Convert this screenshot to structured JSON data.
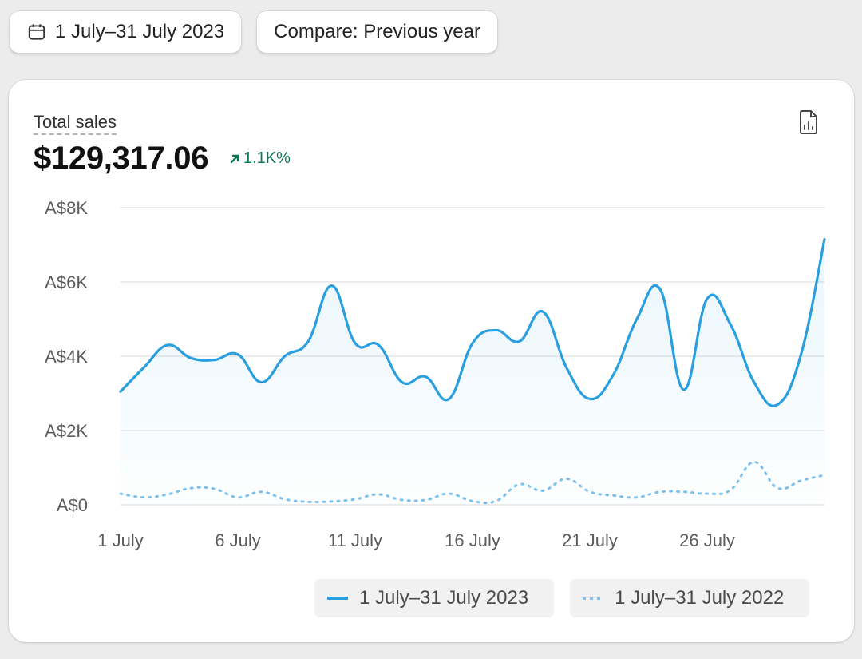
{
  "toolbar": {
    "date_range_label": "1 July–31 July 2023",
    "compare_label": "Compare: Previous year",
    "date_icon": "calendar-icon"
  },
  "metric": {
    "title": "Total sales",
    "value": "$129,317.06",
    "change": "1.1K%",
    "change_icon": "arrow-up-right-icon",
    "export_icon": "chart-report-icon"
  },
  "colors": {
    "current": "#2a9fe0",
    "previous": "#7cc0ec",
    "grid": "#e6e6e6",
    "positive": "#0c7a52"
  },
  "chart_data": {
    "type": "area",
    "ylim": [
      0,
      8000
    ],
    "y_ticks": [
      0,
      2000,
      4000,
      6000,
      8000
    ],
    "y_tick_labels": [
      "A$0",
      "A$2K",
      "A$4K",
      "A$6K",
      "A$8K"
    ],
    "x_ticks": [
      1,
      6,
      11,
      16,
      21,
      26
    ],
    "x_tick_labels": [
      "1 July",
      "6 July",
      "11 July",
      "16 July",
      "21 July",
      "26 July"
    ],
    "x": [
      1,
      2,
      3,
      4,
      5,
      6,
      7,
      8,
      9,
      10,
      11,
      12,
      13,
      14,
      15,
      16,
      17,
      18,
      19,
      20,
      21,
      22,
      23,
      24,
      25,
      26,
      27,
      28,
      29,
      30,
      31
    ],
    "series": [
      {
        "name": "1 July–31 July 2023",
        "style": "solid",
        "values": [
          3050,
          3700,
          4300,
          3950,
          3900,
          4050,
          3300,
          4000,
          4400,
          5900,
          4350,
          4300,
          3300,
          3450,
          2850,
          4350,
          4700,
          4400,
          5200,
          3700,
          2850,
          3500,
          5000,
          5800,
          3100,
          5550,
          4850,
          3300,
          2700,
          4050,
          7150
        ]
      },
      {
        "name": "1 July–31 July 2022",
        "style": "dotted",
        "values": [
          300,
          200,
          280,
          450,
          430,
          200,
          350,
          150,
          80,
          90,
          150,
          280,
          130,
          130,
          300,
          100,
          100,
          550,
          380,
          700,
          350,
          250,
          200,
          350,
          350,
          300,
          400,
          1150,
          450,
          650,
          800
        ]
      }
    ]
  }
}
